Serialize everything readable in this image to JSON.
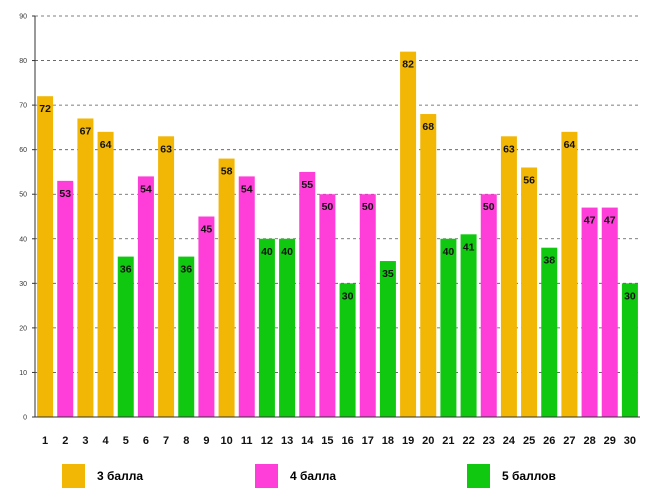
{
  "chart_data": {
    "type": "bar",
    "title": "",
    "xlabel": "",
    "ylabel": "",
    "ylim": [
      0,
      90
    ],
    "y_ticks": [
      0,
      10,
      20,
      30,
      40,
      50,
      60,
      70,
      80,
      90
    ],
    "grid": "horizontal dashed",
    "categories": [
      "1",
      "2",
      "3",
      "4",
      "5",
      "6",
      "7",
      "8",
      "9",
      "10",
      "11",
      "12",
      "13",
      "14",
      "15",
      "16",
      "17",
      "18",
      "19",
      "20",
      "21",
      "22",
      "23",
      "24",
      "25",
      "26",
      "27",
      "28",
      "29",
      "30"
    ],
    "values": [
      72,
      53,
      67,
      64,
      36,
      54,
      63,
      36,
      45,
      58,
      54,
      40,
      40,
      55,
      50,
      30,
      50,
      35,
      82,
      68,
      40,
      41,
      50,
      63,
      56,
      38,
      64,
      47,
      47,
      30
    ],
    "bar_groups": [
      "3",
      "4",
      "3",
      "3",
      "5",
      "4",
      "3",
      "5",
      "4",
      "3",
      "4",
      "5",
      "5",
      "4",
      "4",
      "5",
      "4",
      "5",
      "3",
      "3",
      "5",
      "5",
      "4",
      "3",
      "3",
      "5",
      "3",
      "4",
      "4",
      "5"
    ],
    "legend": [
      {
        "key": "3",
        "label": "3 балла",
        "color": "#F2B705"
      },
      {
        "key": "4",
        "label": "4 балла",
        "color": "#FF3DD8"
      },
      {
        "key": "5",
        "label": "5 баллов",
        "color": "#10C810"
      }
    ]
  }
}
